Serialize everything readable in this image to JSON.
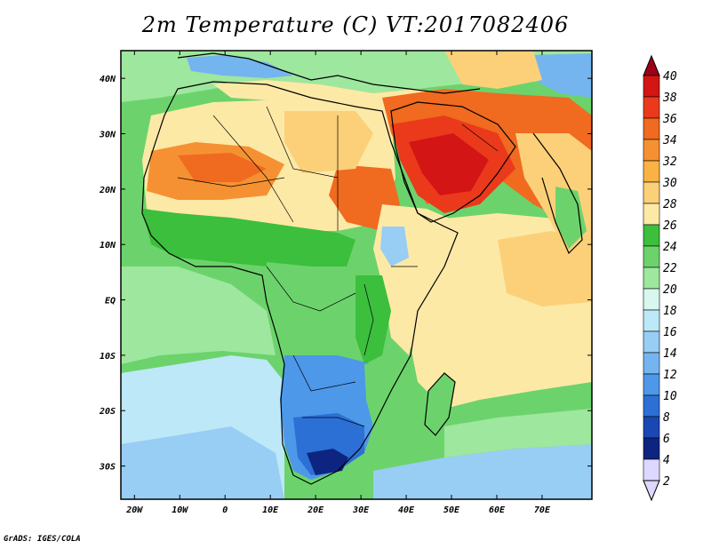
{
  "title": "2m Temperature (C) VT:2017082406",
  "credit": "GrADS: IGES/COLA",
  "map": {
    "lon_range": [
      -23,
      81
    ],
    "lat_range": [
      -36,
      45
    ],
    "lon_ticks": [
      {
        "value": -20,
        "label": "20W"
      },
      {
        "value": -10,
        "label": "10W"
      },
      {
        "value": 0,
        "label": "0"
      },
      {
        "value": 10,
        "label": "10E"
      },
      {
        "value": 20,
        "label": "20E"
      },
      {
        "value": 30,
        "label": "30E"
      },
      {
        "value": 40,
        "label": "40E"
      },
      {
        "value": 50,
        "label": "50E"
      },
      {
        "value": 60,
        "label": "60E"
      },
      {
        "value": 70,
        "label": "70E"
      }
    ],
    "lat_ticks": [
      {
        "value": 40,
        "label": "40N"
      },
      {
        "value": 30,
        "label": "30N"
      },
      {
        "value": 20,
        "label": "20N"
      },
      {
        "value": 10,
        "label": "10N"
      },
      {
        "value": 0,
        "label": "EQ"
      },
      {
        "value": -10,
        "label": "10S"
      },
      {
        "value": -20,
        "label": "20S"
      },
      {
        "value": -30,
        "label": "30S"
      }
    ]
  },
  "colorbar": {
    "levels": [
      "40",
      "38",
      "36",
      "34",
      "32",
      "30",
      "28",
      "26",
      "24",
      "22",
      "20",
      "18",
      "16",
      "14",
      "12",
      "10",
      "8",
      "6",
      "4",
      "2"
    ],
    "colors": [
      "#9e0015",
      "#d31515",
      "#ea3a1b",
      "#f06a20",
      "#f59132",
      "#fbb244",
      "#fcd079",
      "#fde9a6",
      "#3cbf3c",
      "#6cd36c",
      "#9ee79e",
      "#d7f7f0",
      "#bde8f7",
      "#98cdf4",
      "#74b5ef",
      "#4d98e8",
      "#2c70d6",
      "#1a48b2",
      "#0d2480",
      "#dcd8ff"
    ]
  },
  "regions": {
    "ocean_south_cool": "#bde8f7",
    "ocean_south_cooler": "#98cdf4",
    "ocean_tropical": "#6cd36c",
    "ocean_warm": "#fde9a6",
    "ocean_warmer": "#fcd079",
    "sahara": "#fde9a6",
    "sahel_hot": "#f59132",
    "arabia_hot": "#ea3a1b",
    "arabia_core": "#d31515",
    "west_africa": "#3cbf3c",
    "central_africa": "#6cd36c",
    "east_africa": "#fde9a6",
    "southern_africa_cold": "#4d98e8",
    "south_africa_colder": "#2c70d6",
    "lesotho": "#0d2480",
    "madagascar": "#6cd36c",
    "europe": "#9ee79e",
    "mountains": "#74b5ef"
  }
}
